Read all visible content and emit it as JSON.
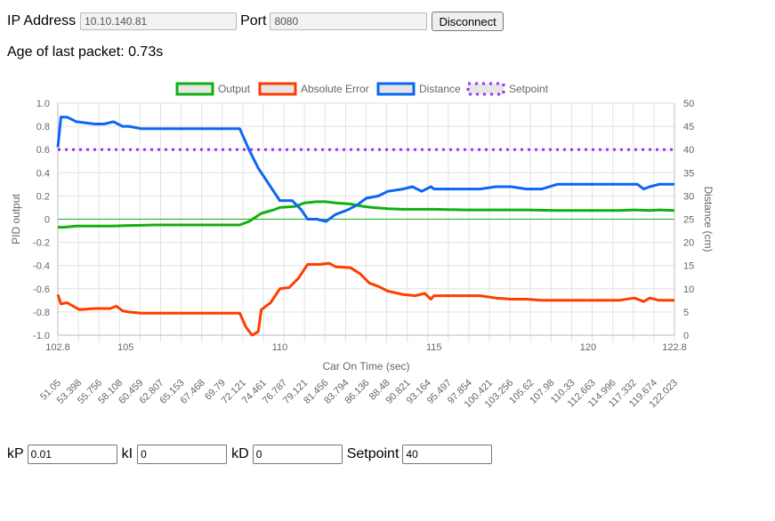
{
  "connection": {
    "ip_label": "IP Address",
    "ip_value": "10.10.140.81",
    "port_label": "Port",
    "port_value": "8080",
    "disconnect_label": "Disconnect"
  },
  "status": {
    "age_text": "Age of last packet: 0.73s"
  },
  "controls": {
    "kp_label": "kP",
    "kp_value": "0.01",
    "ki_label": "kI",
    "ki_value": "0",
    "kd_label": "kD",
    "kd_value": "0",
    "setpoint_label": "Setpoint",
    "setpoint_value": "40"
  },
  "chart_data": {
    "type": "line",
    "legend_position": "top",
    "grid": true,
    "xlabel": "Car On Time (sec)",
    "ylabel_left": "PID output",
    "ylabel_right": "Distance (cm)",
    "xlim": [
      102.8,
      122.8
    ],
    "ylim_left": [
      -1.0,
      1.0
    ],
    "ylim_right": [
      0,
      50
    ],
    "x_ticks": [
      "102.8",
      "105",
      "110",
      "115",
      "120",
      "122.8"
    ],
    "y_ticks_left": [
      "1.0",
      "0.8",
      "0.6",
      "0.4",
      "0.2",
      "0",
      "-0.2",
      "-0.4",
      "-0.6",
      "-0.8",
      "-1.0"
    ],
    "y_ticks_right": [
      "50",
      "45",
      "40",
      "35",
      "30",
      "25",
      "20",
      "15",
      "10",
      "5",
      "0"
    ],
    "secondary_x_ticks": [
      "51.05",
      "53.398",
      "55.756",
      "58.108",
      "60.459",
      "62.807",
      "65.153",
      "67.468",
      "69.79",
      "72.121",
      "74.461",
      "76.787",
      "79.121",
      "81.456",
      "83.794",
      "86.136",
      "88.48",
      "90.821",
      "93.164",
      "95.497",
      "97.854",
      "100.421",
      "103.256",
      "105.62",
      "107.98",
      "110.33",
      "112.663",
      "114.996",
      "117.332",
      "119.674",
      "122.023"
    ],
    "series": [
      {
        "name": "Output",
        "color": "#11b011",
        "axis": "left",
        "points": [
          [
            102.8,
            -0.07
          ],
          [
            103.0,
            -0.07
          ],
          [
            103.4,
            -0.06
          ],
          [
            104.0,
            -0.06
          ],
          [
            104.5,
            -0.06
          ],
          [
            105.0,
            -0.055
          ],
          [
            106.0,
            -0.05
          ],
          [
            107.0,
            -0.05
          ],
          [
            108.0,
            -0.05
          ],
          [
            108.7,
            -0.05
          ],
          [
            109.0,
            -0.02
          ],
          [
            109.4,
            0.05
          ],
          [
            109.8,
            0.08
          ],
          [
            110.0,
            0.1
          ],
          [
            110.5,
            0.11
          ],
          [
            110.8,
            0.14
          ],
          [
            111.2,
            0.15
          ],
          [
            111.5,
            0.15
          ],
          [
            111.8,
            0.14
          ],
          [
            112.3,
            0.13
          ],
          [
            112.7,
            0.11
          ],
          [
            113.0,
            0.1
          ],
          [
            113.5,
            0.09
          ],
          [
            114.0,
            0.085
          ],
          [
            114.5,
            0.085
          ],
          [
            115.0,
            0.085
          ],
          [
            116.0,
            0.08
          ],
          [
            117.0,
            0.08
          ],
          [
            118.0,
            0.08
          ],
          [
            119.0,
            0.075
          ],
          [
            120.0,
            0.075
          ],
          [
            121.0,
            0.075
          ],
          [
            121.5,
            0.08
          ],
          [
            122.0,
            0.075
          ],
          [
            122.3,
            0.08
          ],
          [
            122.8,
            0.075
          ]
        ]
      },
      {
        "name": "Absolute Error",
        "color": "#ff3d00",
        "axis": "left",
        "points": [
          [
            102.8,
            -0.65
          ],
          [
            102.9,
            -0.73
          ],
          [
            103.1,
            -0.72
          ],
          [
            103.5,
            -0.78
          ],
          [
            104.0,
            -0.77
          ],
          [
            104.5,
            -0.77
          ],
          [
            104.7,
            -0.75
          ],
          [
            104.9,
            -0.79
          ],
          [
            105.1,
            -0.8
          ],
          [
            105.5,
            -0.81
          ],
          [
            106.0,
            -0.81
          ],
          [
            107.0,
            -0.81
          ],
          [
            108.0,
            -0.81
          ],
          [
            108.7,
            -0.81
          ],
          [
            108.9,
            -0.93
          ],
          [
            109.1,
            -1.0
          ],
          [
            109.3,
            -0.97
          ],
          [
            109.4,
            -0.78
          ],
          [
            109.7,
            -0.72
          ],
          [
            110.0,
            -0.6
          ],
          [
            110.3,
            -0.59
          ],
          [
            110.6,
            -0.51
          ],
          [
            110.9,
            -0.39
          ],
          [
            111.3,
            -0.39
          ],
          [
            111.6,
            -0.38
          ],
          [
            111.8,
            -0.41
          ],
          [
            112.3,
            -0.42
          ],
          [
            112.6,
            -0.47
          ],
          [
            112.9,
            -0.55
          ],
          [
            113.2,
            -0.58
          ],
          [
            113.5,
            -0.62
          ],
          [
            114.0,
            -0.65
          ],
          [
            114.4,
            -0.66
          ],
          [
            114.7,
            -0.64
          ],
          [
            114.9,
            -0.69
          ],
          [
            115.0,
            -0.66
          ],
          [
            115.5,
            -0.66
          ],
          [
            116.0,
            -0.66
          ],
          [
            116.5,
            -0.66
          ],
          [
            117.0,
            -0.68
          ],
          [
            117.5,
            -0.69
          ],
          [
            118.0,
            -0.69
          ],
          [
            118.5,
            -0.7
          ],
          [
            119.0,
            -0.7
          ],
          [
            120.0,
            -0.7
          ],
          [
            121.0,
            -0.7
          ],
          [
            121.5,
            -0.68
          ],
          [
            121.8,
            -0.71
          ],
          [
            122.0,
            -0.68
          ],
          [
            122.3,
            -0.7
          ],
          [
            122.8,
            -0.7
          ]
        ]
      },
      {
        "name": "Distance",
        "color": "#0b66f5",
        "axis": "right",
        "points": [
          [
            102.8,
            40.5
          ],
          [
            102.9,
            47
          ],
          [
            103.1,
            47
          ],
          [
            103.4,
            46
          ],
          [
            104.0,
            45.5
          ],
          [
            104.3,
            45.5
          ],
          [
            104.6,
            46
          ],
          [
            104.9,
            45
          ],
          [
            105.1,
            45
          ],
          [
            105.5,
            44.5
          ],
          [
            106.0,
            44.5
          ],
          [
            107.0,
            44.5
          ],
          [
            108.0,
            44.5
          ],
          [
            108.7,
            44.5
          ],
          [
            109.0,
            40
          ],
          [
            109.3,
            36
          ],
          [
            109.6,
            33
          ],
          [
            109.8,
            31
          ],
          [
            110.0,
            29
          ],
          [
            110.4,
            29
          ],
          [
            110.7,
            27
          ],
          [
            110.9,
            25
          ],
          [
            111.2,
            25
          ],
          [
            111.5,
            24.5
          ],
          [
            111.8,
            26
          ],
          [
            112.2,
            27
          ],
          [
            112.5,
            28
          ],
          [
            112.8,
            29.5
          ],
          [
            113.2,
            30
          ],
          [
            113.5,
            31
          ],
          [
            114.0,
            31.5
          ],
          [
            114.3,
            32
          ],
          [
            114.6,
            31
          ],
          [
            114.9,
            32
          ],
          [
            115.0,
            31.5
          ],
          [
            116.0,
            31.5
          ],
          [
            116.5,
            31.5
          ],
          [
            117.0,
            32
          ],
          [
            117.5,
            32
          ],
          [
            118.0,
            31.5
          ],
          [
            118.5,
            31.5
          ],
          [
            119.0,
            32.5
          ],
          [
            120.0,
            32.5
          ],
          [
            121.0,
            32.5
          ],
          [
            121.6,
            32.5
          ],
          [
            121.8,
            31.5
          ],
          [
            122.0,
            32
          ],
          [
            122.3,
            32.5
          ],
          [
            122.8,
            32.5
          ]
        ]
      },
      {
        "name": "Setpoint",
        "color": "#9a33ff",
        "axis": "right",
        "dashed": true,
        "points": [
          [
            102.8,
            40
          ],
          [
            122.8,
            40
          ]
        ]
      }
    ]
  }
}
